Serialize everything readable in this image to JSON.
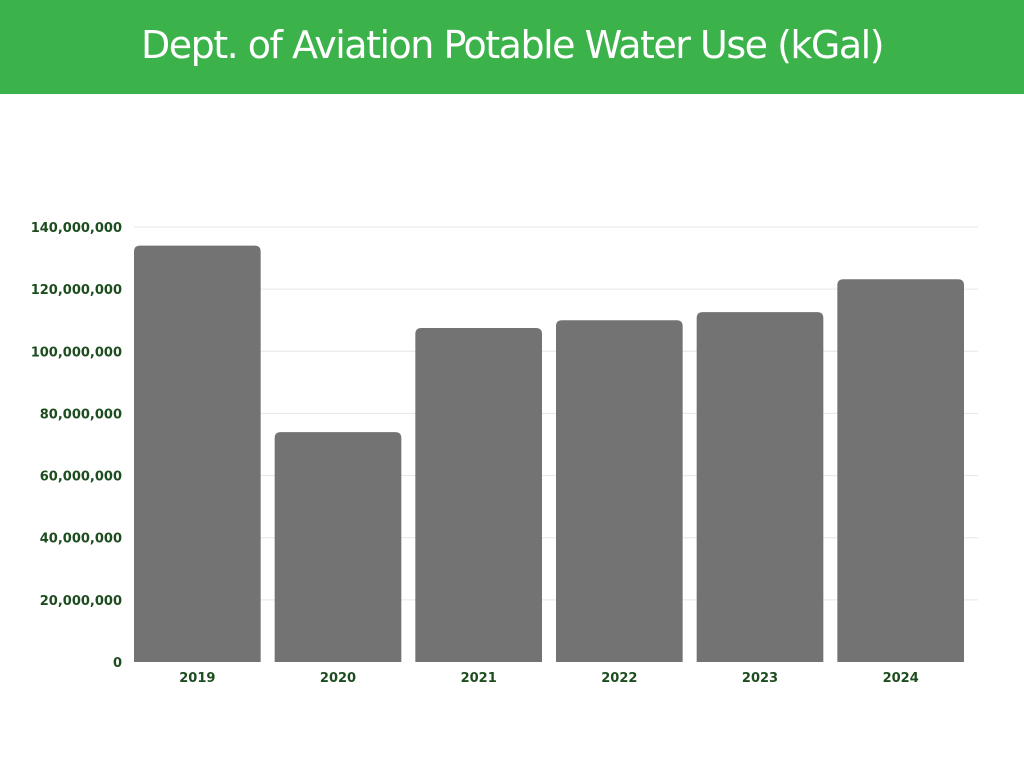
{
  "header": {
    "title": "Dept. of Aviation Potable Water Use (kGal)"
  },
  "colors": {
    "header_bg": "#3cb34a",
    "bar": "#737373",
    "tick_label": "#1d4d1f",
    "grid": "#e6e6e6"
  },
  "chart_data": {
    "type": "bar",
    "title": "Dept. of Aviation Potable Water Use (kGal)",
    "xlabel": "",
    "ylabel": "",
    "categories": [
      "2019",
      "2020",
      "2021",
      "2022",
      "2023",
      "2024"
    ],
    "values": [
      134000000,
      74000000,
      107500000,
      110000000,
      112600000,
      123200000
    ],
    "ylim": [
      0,
      140000000
    ],
    "yticks": [
      0,
      20000000,
      40000000,
      60000000,
      80000000,
      100000000,
      120000000,
      140000000
    ],
    "ytick_labels": [
      "0",
      "20,000,000",
      "40,000,000",
      "60,000,000",
      "80,000,000",
      "100,000,000",
      "120,000,000",
      "140,000,000"
    ],
    "grid": true,
    "legend": "none"
  }
}
